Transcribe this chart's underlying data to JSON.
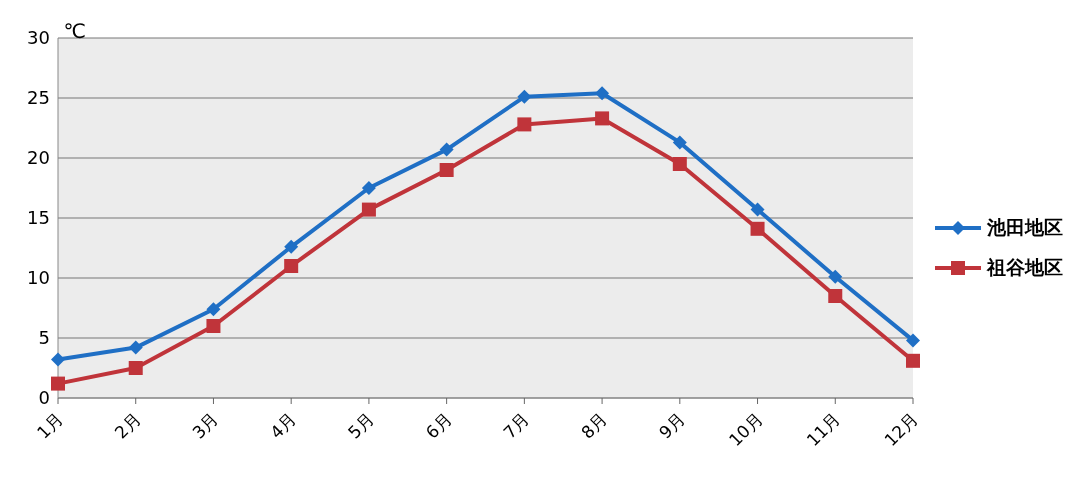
{
  "chart_data": {
    "type": "line",
    "ylabel": "℃",
    "categories": [
      "1月",
      "2月",
      "3月",
      "4月",
      "5月",
      "6月",
      "7月",
      "8月",
      "9月",
      "10月",
      "11月",
      "12月"
    ],
    "series": [
      {
        "name": "池田地区",
        "color": "#1f6fc5",
        "marker": "diamond",
        "values": [
          3.2,
          4.2,
          7.4,
          12.6,
          17.5,
          20.7,
          25.1,
          25.4,
          21.3,
          15.7,
          10.1,
          4.8
        ]
      },
      {
        "name": "祖谷地区",
        "color": "#c0343a",
        "marker": "square",
        "values": [
          1.2,
          2.5,
          6.0,
          11.0,
          15.7,
          19.0,
          22.8,
          23.3,
          19.5,
          14.1,
          8.5,
          3.1
        ]
      }
    ],
    "ylim": [
      0,
      30
    ],
    "yticks": [
      0,
      5,
      10,
      15,
      20,
      25,
      30
    ],
    "grid": "y",
    "legend": "right",
    "line_style": "solid"
  }
}
